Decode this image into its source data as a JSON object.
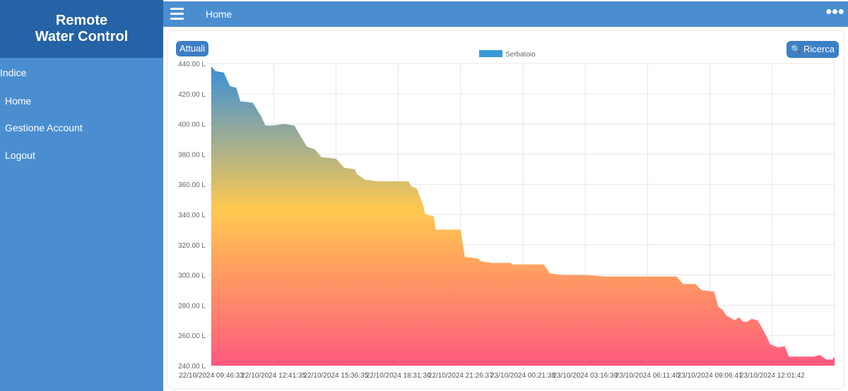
{
  "sidebar": {
    "brand_line1": "Remote",
    "brand_line2": "Water Control",
    "section_label": "Indice",
    "items": [
      {
        "label": "Home"
      },
      {
        "label": "Gestione Account"
      },
      {
        "label": "Logout"
      }
    ]
  },
  "topbar": {
    "title": "Home",
    "menu_icon": "hamburger-icon",
    "more_icon": "more-dots-icon"
  },
  "toolbar": {
    "attuali_label": "Attuali",
    "ricerca_label": "Ricerca",
    "ricerca_icon": "search-icon"
  },
  "colors": {
    "sidebar": "#4a8ed0",
    "brand": "#2563a6",
    "button": "#3d7fc6",
    "gradient_top": "#3a8fd8",
    "gradient_mid": "#ffc94f",
    "gradient_bottom": "#ff5a7e"
  },
  "chart_data": {
    "type": "area",
    "series": [
      {
        "name": "Serbatoio"
      }
    ],
    "legend_placement": "top-center",
    "grid": true,
    "ylim": [
      240,
      440
    ],
    "y_ticks": [
      "440.00 L",
      "420.00 L",
      "400.00 L",
      "380.00 L",
      "360.00 L",
      "340.00 L",
      "320.00 L",
      "300.00 L",
      "280.00 L",
      "260.00 L",
      "240.00 L"
    ],
    "x_ticks": [
      {
        "date": "22/10/2024",
        "time": "09:46:33"
      },
      {
        "date": "22/10/2024",
        "time": "12:41:35"
      },
      {
        "date": "22/10/2024",
        "time": "15:36:35"
      },
      {
        "date": "22/10/2024",
        "time": "18:31:36"
      },
      {
        "date": "22/10/2024",
        "time": "21:26:37"
      },
      {
        "date": "23/10/2024",
        "time": "00:21:38"
      },
      {
        "date": "23/10/2024",
        "time": "03:16:39"
      },
      {
        "date": "23/10/2024",
        "time": "06:11:40"
      },
      {
        "date": "23/10/2024",
        "time": "09:06:41"
      },
      {
        "date": "23/10/2024",
        "time": "12:01:42"
      }
    ],
    "points": [
      [
        0.0,
        438
      ],
      [
        0.2,
        435
      ],
      [
        0.6,
        434
      ],
      [
        0.9,
        425
      ],
      [
        1.2,
        424
      ],
      [
        1.4,
        415
      ],
      [
        2.0,
        414
      ],
      [
        2.4,
        405
      ],
      [
        2.6,
        399
      ],
      [
        3.0,
        399
      ],
      [
        3.5,
        400
      ],
      [
        4.0,
        399
      ],
      [
        4.2,
        394
      ],
      [
        4.6,
        385
      ],
      [
        5.0,
        383
      ],
      [
        5.3,
        378
      ],
      [
        6.0,
        377
      ],
      [
        6.4,
        371
      ],
      [
        6.9,
        370
      ],
      [
        7.0,
        367
      ],
      [
        7.4,
        363
      ],
      [
        8.0,
        362
      ],
      [
        9.0,
        362
      ],
      [
        9.5,
        362
      ],
      [
        9.6,
        359
      ],
      [
        9.9,
        357
      ],
      [
        10.2,
        346
      ],
      [
        10.3,
        340
      ],
      [
        10.7,
        339
      ],
      [
        10.8,
        330
      ],
      [
        11.5,
        330
      ],
      [
        12.0,
        330
      ],
      [
        12.1,
        321
      ],
      [
        12.2,
        312
      ],
      [
        12.8,
        311
      ],
      [
        13.0,
        309
      ],
      [
        13.5,
        308
      ],
      [
        14.0,
        308
      ],
      [
        14.4,
        308
      ],
      [
        14.5,
        307
      ],
      [
        15.0,
        307
      ],
      [
        16.0,
        307
      ],
      [
        16.3,
        301
      ],
      [
        17.0,
        300
      ],
      [
        18.0,
        300
      ],
      [
        19.0,
        299
      ],
      [
        20.0,
        299
      ],
      [
        21.0,
        299
      ],
      [
        22.0,
        299
      ],
      [
        22.4,
        299
      ],
      [
        22.7,
        294
      ],
      [
        23.3,
        294
      ],
      [
        23.6,
        290
      ],
      [
        24.2,
        289
      ],
      [
        24.4,
        279
      ],
      [
        24.6,
        277
      ],
      [
        24.8,
        273
      ],
      [
        25.2,
        270
      ],
      [
        25.4,
        272
      ],
      [
        25.6,
        269
      ],
      [
        25.8,
        269
      ],
      [
        26.0,
        271
      ],
      [
        26.3,
        270
      ],
      [
        26.5,
        265
      ],
      [
        26.7,
        260
      ],
      [
        26.9,
        254
      ],
      [
        27.3,
        252
      ],
      [
        27.6,
        253
      ],
      [
        27.8,
        246
      ],
      [
        28.5,
        246
      ],
      [
        29.0,
        246
      ],
      [
        29.3,
        247
      ],
      [
        29.6,
        244
      ],
      [
        29.9,
        244
      ],
      [
        30.0,
        246
      ]
    ]
  }
}
